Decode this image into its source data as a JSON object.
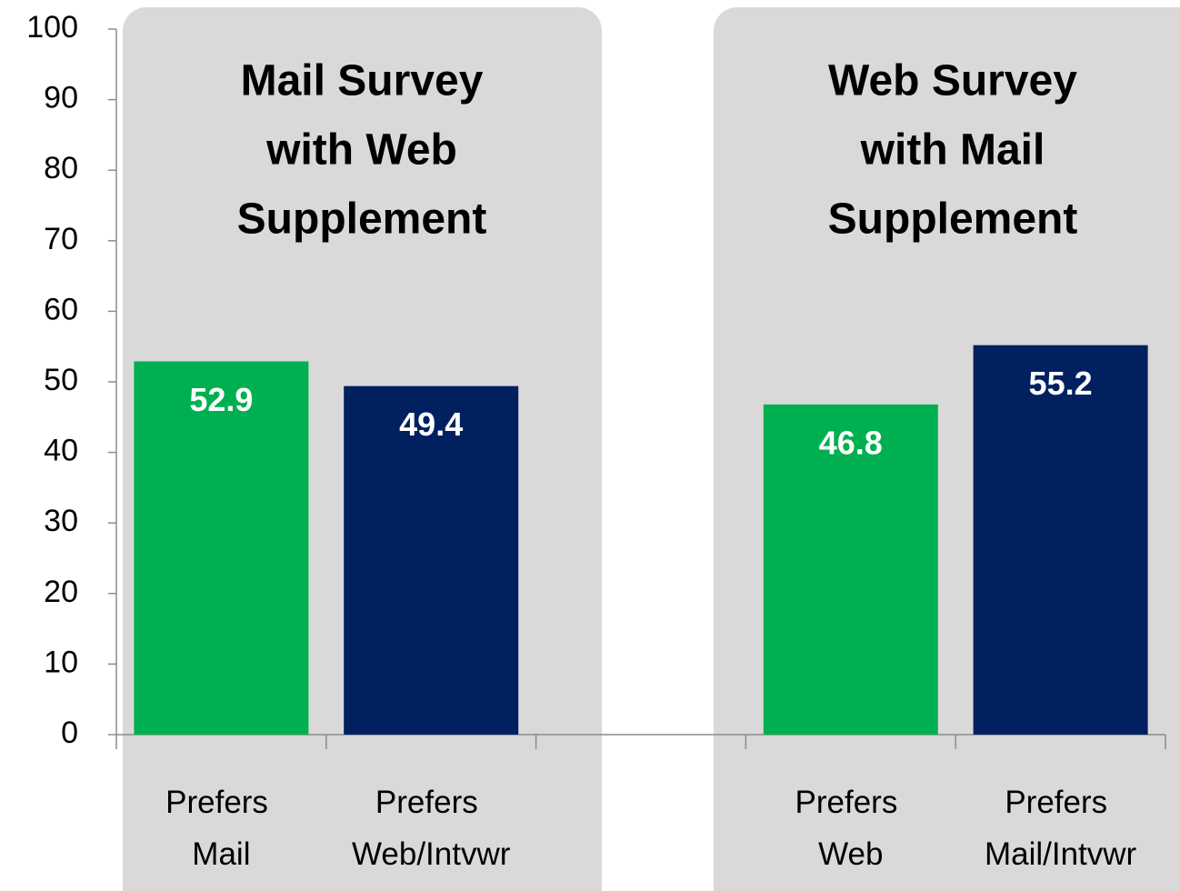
{
  "chart_data": {
    "type": "bar",
    "panels": [
      {
        "title": [
          "Mail Survey",
          "with Web",
          "Supplement"
        ]
      },
      {
        "title": [
          "Web Survey",
          "with Mail",
          "Supplement"
        ]
      }
    ],
    "categories": [
      "Prefers Mail",
      "Prefers Web/Intvwr",
      null,
      "Prefers Web",
      "Prefers Mail/Intvwr"
    ],
    "values": [
      52.9,
      49.4,
      null,
      46.8,
      55.2
    ],
    "colors": [
      "#00b050",
      "#002060",
      null,
      "#00b050",
      "#002060"
    ],
    "ylim": [
      0,
      100
    ],
    "yticks": [
      0,
      10,
      20,
      30,
      40,
      50,
      60,
      70,
      80,
      90,
      100
    ],
    "grid": false
  }
}
